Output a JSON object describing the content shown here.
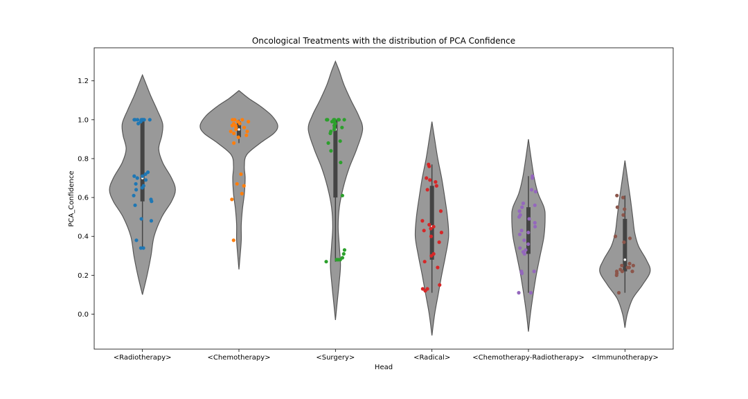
{
  "chart_data": {
    "type": "violin",
    "title": "Oncological Treatments with the distribution of PCA Confidence",
    "xlabel": "Head",
    "ylabel": "PCA_Confidence",
    "ylim": [
      -0.18,
      1.37
    ],
    "yticks": [
      0.0,
      0.2,
      0.4,
      0.6,
      0.8,
      1.0,
      1.2
    ],
    "ytick_labels": [
      "0.0",
      "0.2",
      "0.4",
      "0.6",
      "0.8",
      "1.0",
      "1.2"
    ],
    "grid": false,
    "violin_color": "#999999",
    "categories": [
      "<Radiotherapy>",
      "<Chemotherapy>",
      "<Surgery>",
      "<Radical>",
      "<Chemotherapy-Radiotherapy>",
      "<Immunotherapy>"
    ],
    "series": [
      {
        "category": "<Radiotherapy>",
        "color": "#1f77b4",
        "violin": {
          "min": 0.1,
          "max": 1.23,
          "density": [
            [
              0.1,
              0.0
            ],
            [
              0.2,
              0.12
            ],
            [
              0.3,
              0.22
            ],
            [
              0.4,
              0.3
            ],
            [
              0.5,
              0.5
            ],
            [
              0.58,
              0.75
            ],
            [
              0.64,
              0.85
            ],
            [
              0.7,
              0.75
            ],
            [
              0.78,
              0.52
            ],
            [
              0.85,
              0.42
            ],
            [
              0.92,
              0.5
            ],
            [
              0.98,
              0.52
            ],
            [
              1.05,
              0.38
            ],
            [
              1.12,
              0.22
            ],
            [
              1.18,
              0.1
            ],
            [
              1.23,
              0.0
            ]
          ]
        },
        "box": {
          "q1": 0.58,
          "median": 0.7,
          "q3": 1.0,
          "whisker_low": 0.34,
          "whisker_high": 1.0
        },
        "points": [
          1.0,
          1.0,
          1.0,
          1.0,
          1.0,
          1.0,
          1.0,
          1.0,
          1.0,
          0.99,
          0.98,
          0.73,
          0.72,
          0.71,
          0.71,
          0.7,
          0.69,
          0.67,
          0.66,
          0.65,
          0.64,
          0.61,
          0.59,
          0.58,
          0.56,
          0.49,
          0.48,
          0.38,
          0.34,
          0.34
        ]
      },
      {
        "category": "<Chemotherapy>",
        "color": "#ff7f0e",
        "violin": {
          "min": 0.23,
          "max": 1.15,
          "density": [
            [
              0.23,
              0.0
            ],
            [
              0.3,
              0.03
            ],
            [
              0.38,
              0.06
            ],
            [
              0.46,
              0.06
            ],
            [
              0.54,
              0.09
            ],
            [
              0.62,
              0.14
            ],
            [
              0.7,
              0.16
            ],
            [
              0.76,
              0.14
            ],
            [
              0.82,
              0.2
            ],
            [
              0.88,
              0.55
            ],
            [
              0.93,
              0.9
            ],
            [
              0.97,
              1.0
            ],
            [
              1.02,
              0.85
            ],
            [
              1.07,
              0.55
            ],
            [
              1.11,
              0.25
            ],
            [
              1.15,
              0.0
            ]
          ]
        },
        "box": {
          "q1": 0.91,
          "median": 0.95,
          "q3": 0.99,
          "whisker_low": 0.88,
          "whisker_high": 1.0
        },
        "points": [
          1.0,
          1.0,
          1.0,
          0.99,
          0.99,
          0.98,
          0.98,
          0.97,
          0.97,
          0.96,
          0.96,
          0.95,
          0.94,
          0.94,
          0.93,
          0.92,
          0.91,
          0.88,
          0.72,
          0.67,
          0.66,
          0.62,
          0.59,
          0.38
        ]
      },
      {
        "category": "<Surgery>",
        "color": "#2ca02c",
        "violin": {
          "min": -0.03,
          "max": 1.3,
          "density": [
            [
              -0.03,
              0.0
            ],
            [
              0.05,
              0.04
            ],
            [
              0.15,
              0.09
            ],
            [
              0.25,
              0.13
            ],
            [
              0.35,
              0.1
            ],
            [
              0.45,
              0.07
            ],
            [
              0.55,
              0.1
            ],
            [
              0.65,
              0.2
            ],
            [
              0.75,
              0.35
            ],
            [
              0.85,
              0.55
            ],
            [
              0.95,
              0.7
            ],
            [
              1.02,
              0.6
            ],
            [
              1.1,
              0.4
            ],
            [
              1.18,
              0.22
            ],
            [
              1.25,
              0.1
            ],
            [
              1.3,
              0.0
            ]
          ]
        },
        "box": {
          "q1": 0.6,
          "median": 0.95,
          "q3": 1.0,
          "whisker_low": 0.27,
          "whisker_high": 1.0
        },
        "points": [
          1.0,
          1.0,
          1.0,
          1.0,
          1.0,
          1.0,
          1.0,
          0.99,
          0.99,
          0.98,
          0.97,
          0.96,
          0.96,
          0.95,
          0.94,
          0.93,
          0.89,
          0.88,
          0.84,
          0.78,
          0.61,
          0.33,
          0.31,
          0.29,
          0.28,
          0.28,
          0.28,
          0.27
        ]
      },
      {
        "category": "<Radical>",
        "color": "#d62728",
        "violin": {
          "min": -0.11,
          "max": 0.99,
          "density": [
            [
              -0.11,
              0.0
            ],
            [
              0.0,
              0.07
            ],
            [
              0.1,
              0.16
            ],
            [
              0.2,
              0.25
            ],
            [
              0.3,
              0.35
            ],
            [
              0.4,
              0.43
            ],
            [
              0.5,
              0.4
            ],
            [
              0.6,
              0.33
            ],
            [
              0.7,
              0.25
            ],
            [
              0.8,
              0.15
            ],
            [
              0.9,
              0.07
            ],
            [
              0.99,
              0.0
            ]
          ]
        },
        "box": {
          "q1": 0.28,
          "median": 0.45,
          "q3": 0.66,
          "whisker_low": 0.11,
          "whisker_high": 0.77
        },
        "points": [
          0.77,
          0.76,
          0.7,
          0.69,
          0.68,
          0.66,
          0.64,
          0.53,
          0.48,
          0.46,
          0.45,
          0.44,
          0.43,
          0.42,
          0.4,
          0.37,
          0.31,
          0.3,
          0.27,
          0.24,
          0.15,
          0.13,
          0.13,
          0.12
        ]
      },
      {
        "category": "<Chemotherapy-Radiotherapy>",
        "color": "#9467bd",
        "violin": {
          "min": -0.09,
          "max": 0.9,
          "density": [
            [
              -0.09,
              0.0
            ],
            [
              0.0,
              0.05
            ],
            [
              0.1,
              0.12
            ],
            [
              0.2,
              0.2
            ],
            [
              0.3,
              0.3
            ],
            [
              0.4,
              0.4
            ],
            [
              0.5,
              0.43
            ],
            [
              0.55,
              0.4
            ],
            [
              0.62,
              0.25
            ],
            [
              0.7,
              0.15
            ],
            [
              0.8,
              0.07
            ],
            [
              0.9,
              0.0
            ]
          ]
        },
        "box": {
          "q1": 0.31,
          "median": 0.42,
          "q3": 0.55,
          "whisker_low": 0.11,
          "whisker_high": 0.71
        },
        "points": [
          0.71,
          0.7,
          0.64,
          0.63,
          0.57,
          0.56,
          0.55,
          0.53,
          0.51,
          0.5,
          0.49,
          0.47,
          0.45,
          0.43,
          0.42,
          0.41,
          0.38,
          0.36,
          0.34,
          0.33,
          0.32,
          0.31,
          0.22,
          0.22,
          0.21,
          0.11,
          0.11
        ]
      },
      {
        "category": "<Immunotherapy>",
        "color": "#8c564b",
        "violin": {
          "min": -0.07,
          "max": 0.79,
          "density": [
            [
              -0.07,
              0.0
            ],
            [
              0.0,
              0.06
            ],
            [
              0.08,
              0.2
            ],
            [
              0.15,
              0.45
            ],
            [
              0.22,
              0.65
            ],
            [
              0.28,
              0.55
            ],
            [
              0.35,
              0.35
            ],
            [
              0.42,
              0.25
            ],
            [
              0.5,
              0.2
            ],
            [
              0.58,
              0.15
            ],
            [
              0.65,
              0.1
            ],
            [
              0.72,
              0.05
            ],
            [
              0.79,
              0.0
            ]
          ]
        },
        "box": {
          "q1": 0.22,
          "median": 0.28,
          "q3": 0.49,
          "whisker_low": 0.11,
          "whisker_high": 0.61
        },
        "points": [
          0.61,
          0.6,
          0.55,
          0.54,
          0.51,
          0.4,
          0.39,
          0.37,
          0.26,
          0.25,
          0.25,
          0.24,
          0.24,
          0.23,
          0.22,
          0.22,
          0.22,
          0.21,
          0.2,
          0.11
        ]
      }
    ]
  }
}
